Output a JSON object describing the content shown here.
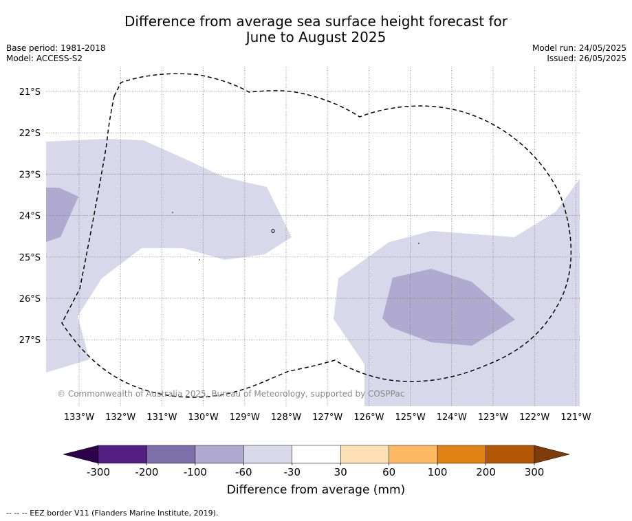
{
  "title": {
    "line1": "Difference from average sea surface height forecast for",
    "line2": "June to August 2025"
  },
  "meta": {
    "base_period": "Base period: 1981-2018",
    "model": "Model: ACCESS-S2",
    "model_run": "Model run: 24/05/2025",
    "issued": "Issued: 26/05/2025"
  },
  "map": {
    "lat_labels": [
      "21°S",
      "22°S",
      "23°S",
      "24°S",
      "25°S",
      "26°S",
      "27°S"
    ],
    "lon_labels": [
      "133°W",
      "132°W",
      "131°W",
      "130°W",
      "129°W",
      "128°W",
      "127°W",
      "126°W",
      "125°W",
      "124°W",
      "123°W",
      "122°W",
      "121°W"
    ],
    "copyright": "© Commonwealth of Australia 2025, Bureau of Meteorology, supported by COSPPac",
    "colors": {
      "light": "#d8d8ea",
      "mid": "#b0aad0",
      "grid": "#777777"
    }
  },
  "colorbar": {
    "ticks": [
      "-300",
      "-200",
      "-100",
      "-60",
      "-30",
      "30",
      "60",
      "100",
      "200",
      "300"
    ],
    "colors": [
      "#531f83",
      "#7d70aa",
      "#b0aad0",
      "#d8d8ea",
      "#ffffff",
      "#fee0b6",
      "#fdb863",
      "#e08214",
      "#b35806"
    ],
    "under_color": "#2d004b",
    "over_color": "#7f3b08",
    "label": "Difference from average (mm)"
  },
  "footer": "-- -- -- EEZ border V11 (Flanders Marine Institute, 2019)."
}
